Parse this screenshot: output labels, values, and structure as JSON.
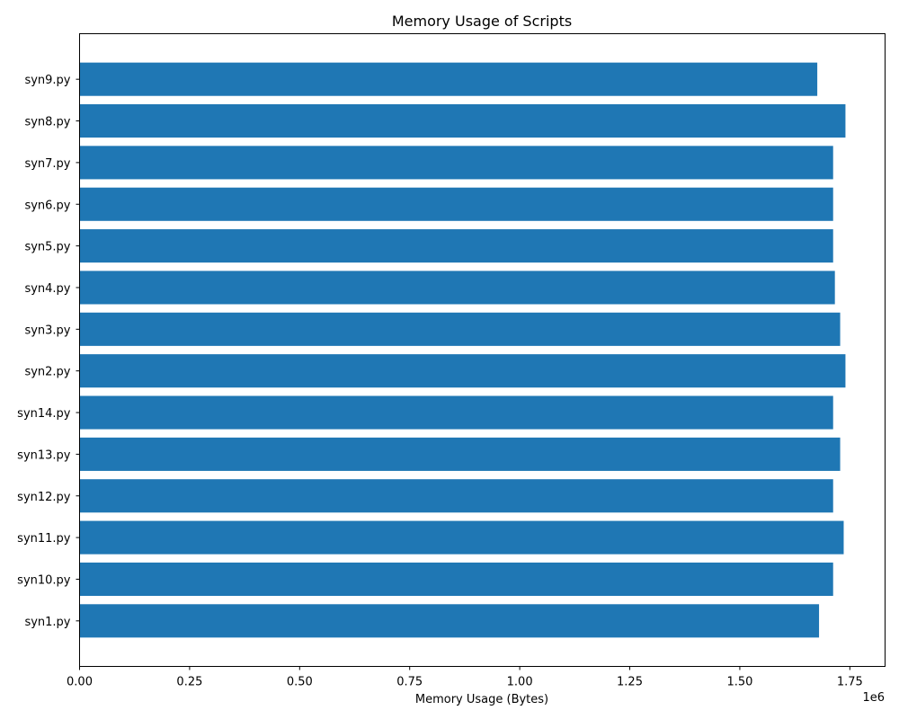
{
  "chart_data": {
    "type": "bar",
    "orientation": "horizontal",
    "title": "Memory Usage of Scripts",
    "xlabel": "Memory Usage (Bytes)",
    "ylabel": "",
    "offset_label": "1e6",
    "scale": 1000000,
    "xlim": [
      0,
      1830000
    ],
    "xticks": [
      0,
      250000,
      500000,
      750000,
      1000000,
      1250000,
      1500000,
      1750000
    ],
    "xtick_labels": [
      "0.00",
      "0.25",
      "0.50",
      "0.75",
      "1.00",
      "1.25",
      "1.50",
      "1.75"
    ],
    "grid": false,
    "bar_color": "#1f77b4",
    "categories": [
      "syn1.py",
      "syn10.py",
      "syn11.py",
      "syn12.py",
      "syn13.py",
      "syn14.py",
      "syn2.py",
      "syn3.py",
      "syn4.py",
      "syn5.py",
      "syn6.py",
      "syn7.py",
      "syn8.py",
      "syn9.py"
    ],
    "values": [
      1680000,
      1712000,
      1736000,
      1712000,
      1728000,
      1712000,
      1740000,
      1728000,
      1716000,
      1712000,
      1712000,
      1712000,
      1740000,
      1676000
    ]
  }
}
